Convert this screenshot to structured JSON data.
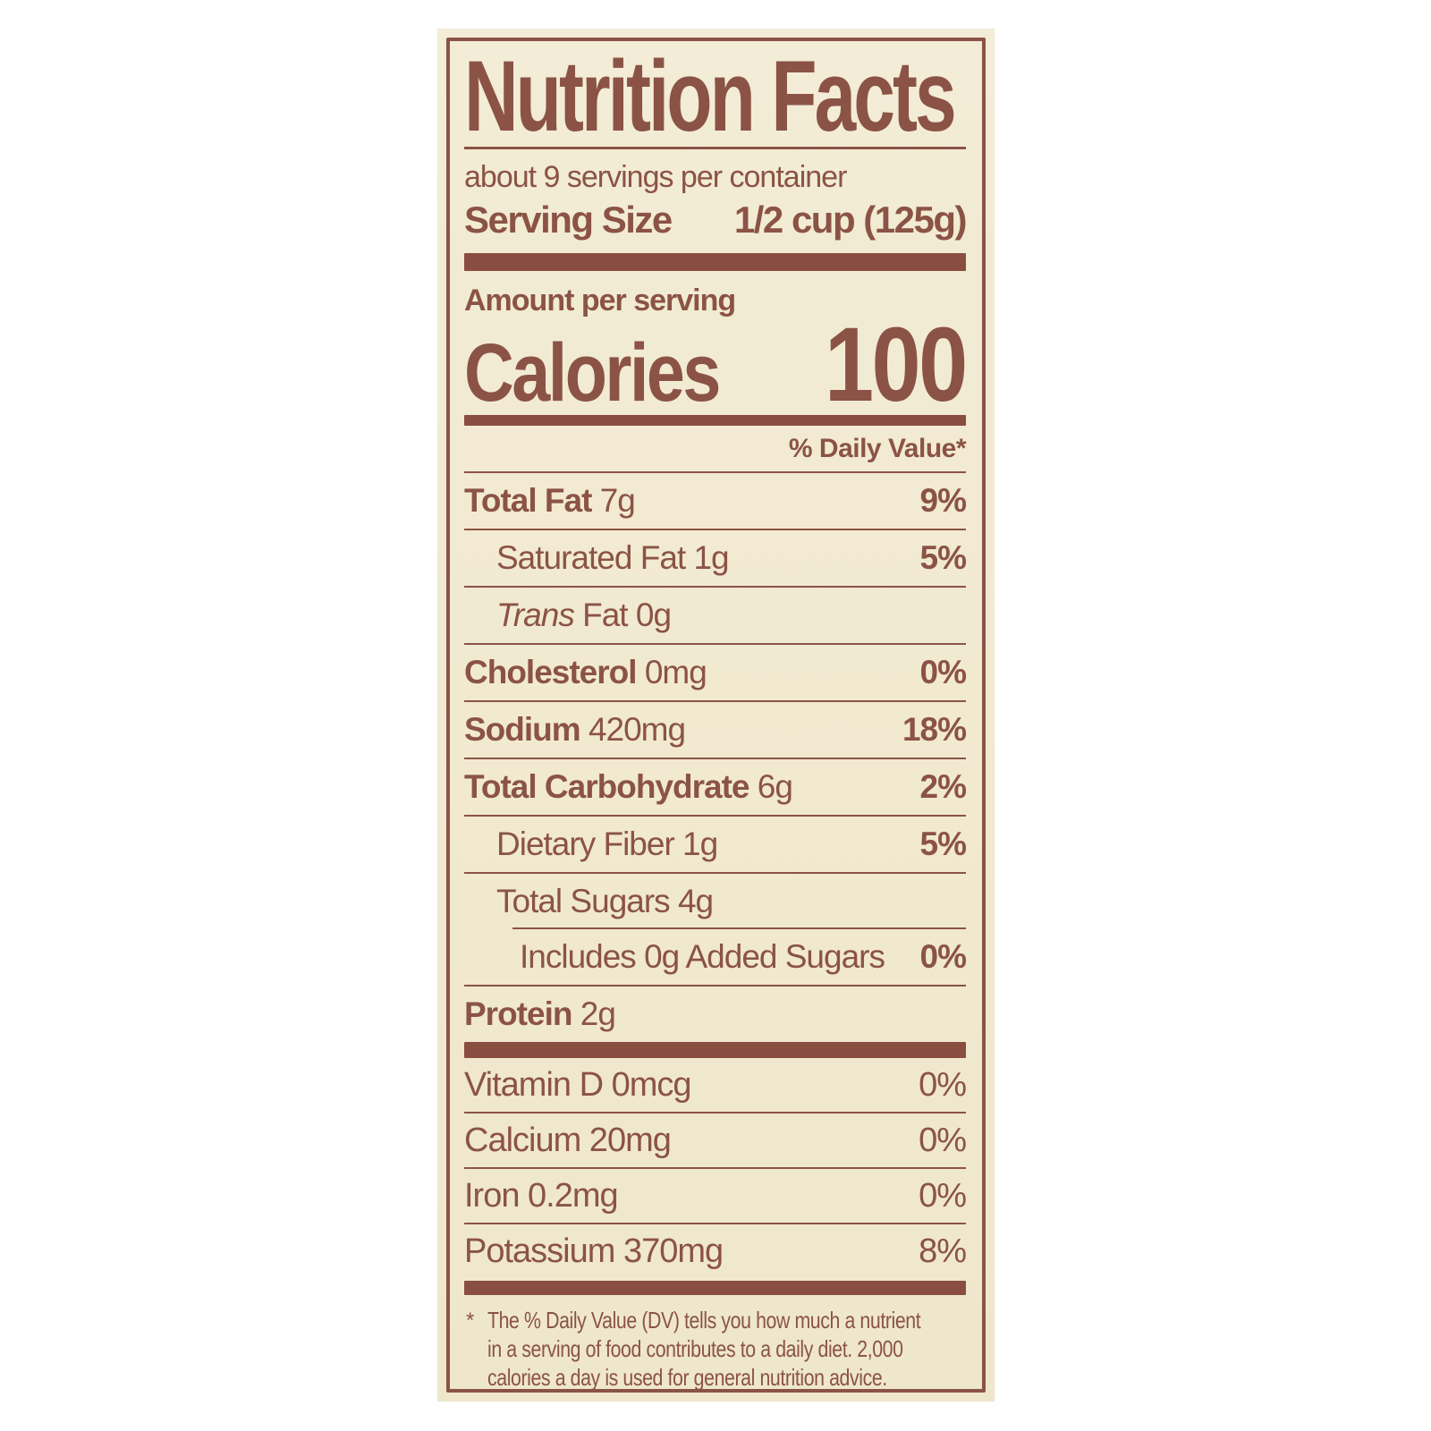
{
  "label": {
    "title": "Nutrition Facts",
    "servings_per_container": "about 9 servings per container",
    "serving_size_label": "Serving Size",
    "serving_size_value": "1/2 cup (125g)",
    "amount_per_serving": "Amount per serving",
    "calories_label": "Calories",
    "calories_value": "100",
    "daily_value_header": "% Daily Value*",
    "footnote_marker": "*",
    "footnote_lines": [
      "The % Daily Value (DV) tells you how much a nutrient",
      "in a serving of food contributes to a daily diet. 2,000",
      "calories a day is used for general nutrition advice."
    ]
  },
  "nutrients": [
    {
      "bold": "Total Fat",
      "rest": " 7g",
      "pct": "9%"
    },
    {
      "rest": "Saturated Fat 1g",
      "pct": "5%"
    },
    {
      "italic": "Trans",
      "rest": " Fat 0g",
      "pct": ""
    },
    {
      "bold": "Cholesterol",
      "rest": " 0mg",
      "pct": "0%"
    },
    {
      "bold": "Sodium",
      "rest": " 420mg",
      "pct": "18%"
    },
    {
      "bold": "Total Carbohydrate",
      "rest": " 6g",
      "pct": "2%"
    },
    {
      "rest": "Dietary Fiber 1g",
      "pct": "5%"
    },
    {
      "rest": "Total Sugars 4g",
      "pct": ""
    },
    {
      "rest": "Includes 0g Added Sugars",
      "pct": "0%"
    },
    {
      "bold": "Protein",
      "rest": " 2g",
      "pct": ""
    }
  ],
  "vitamins": [
    {
      "name": "Vitamin D 0mcg",
      "pct": "0%"
    },
    {
      "name": "Calcium 20mg",
      "pct": "0%"
    },
    {
      "name": "Iron 0.2mg",
      "pct": "0%"
    },
    {
      "name": "Potassium 370mg",
      "pct": "8%"
    }
  ],
  "colors": {
    "ink": "#8b5346",
    "bar": "#8a4e40",
    "label_background": "#f2ead2",
    "page_background": "#ffffff"
  }
}
